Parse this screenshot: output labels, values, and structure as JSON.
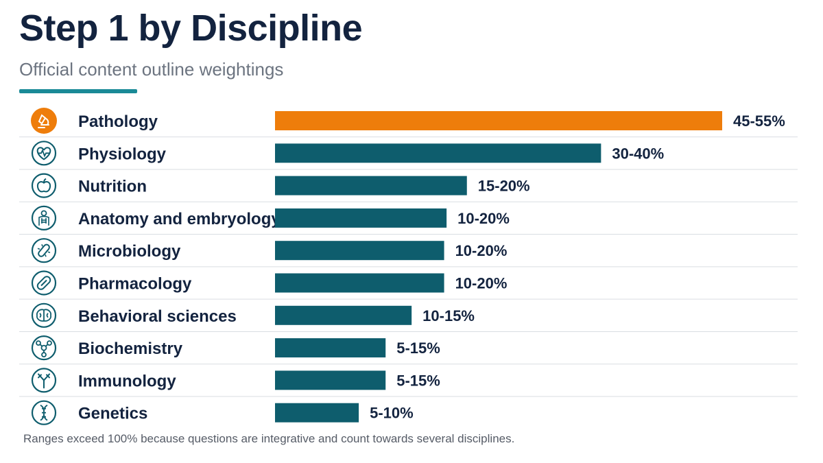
{
  "title": "Step 1 by Discipline",
  "subtitle": "Official content outline weightings",
  "footnote": "Ranges exceed 100% because questions are integrative and count towards several disciplines.",
  "colors": {
    "highlight": "#ee7d0b",
    "bar": "#0e5d6d",
    "icon": "#0e5d6d",
    "accent": "#1a8a97",
    "title": "#13233f",
    "divider": "#d9dde2"
  },
  "chart_data": {
    "type": "bar",
    "orientation": "horizontal",
    "value_unit": "percent of exam (range)",
    "xlim": [
      0,
      56
    ],
    "grid": false,
    "legend": "none",
    "categories": [
      "Pathology",
      "Physiology",
      "Nutrition",
      "Anatomy and embryology",
      "Microbiology",
      "Pharmacology",
      "Behavioral sciences",
      "Biochemistry",
      "Immunology",
      "Genetics"
    ],
    "ranges": [
      [
        45,
        55
      ],
      [
        30,
        40
      ],
      [
        15,
        20
      ],
      [
        10,
        20
      ],
      [
        10,
        20
      ],
      [
        10,
        20
      ],
      [
        10,
        15
      ],
      [
        5,
        15
      ],
      [
        5,
        15
      ],
      [
        5,
        10
      ]
    ],
    "values": [
      55,
      40,
      20,
      20,
      20,
      20,
      15,
      15,
      15,
      10
    ],
    "bar_lengths_estimated": [
      55,
      40.1,
      23.6,
      21.1,
      20.8,
      20.8,
      16.8,
      13.6,
      13.6,
      10.3
    ],
    "labels": [
      "45-55%",
      "30-40%",
      "15-20%",
      "10-20%",
      "10-20%",
      "10-20%",
      "10-15%",
      "5-15%",
      "5-15%",
      "5-10%"
    ],
    "icons": [
      "microscope-icon",
      "heart-pulse-icon",
      "apple-icon",
      "body-skeleton-icon",
      "bacteria-icon",
      "pill-icon",
      "brain-icon",
      "molecule-icon",
      "antibody-icon",
      "dna-icon"
    ],
    "highlight_index": 0
  }
}
